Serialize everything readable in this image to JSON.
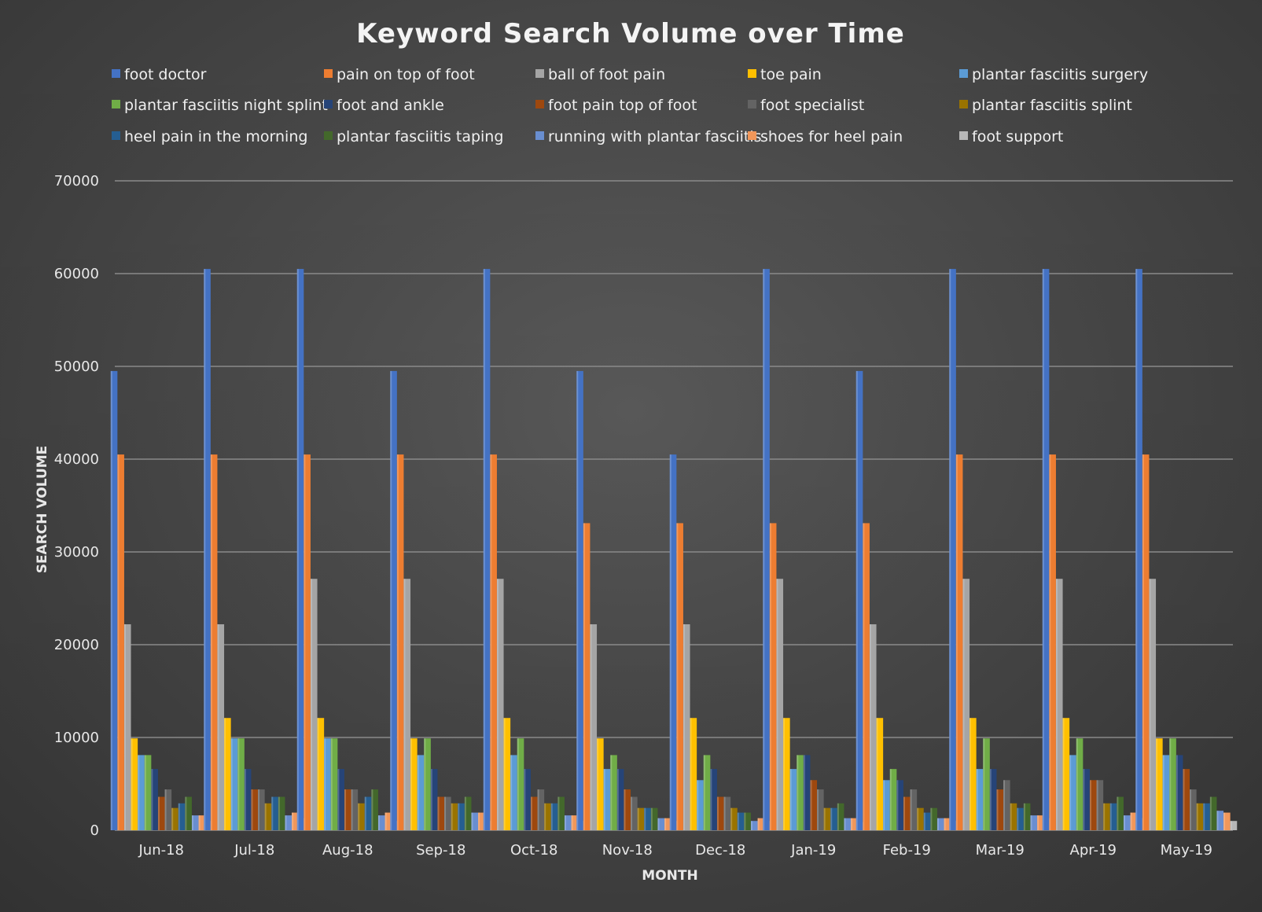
{
  "chart_data": {
    "type": "bar",
    "title": "Keyword Search Volume over Time",
    "xlabel": "MONTH",
    "ylabel": "SEARCH VOLUME",
    "ylim": [
      0,
      70000
    ],
    "yticks": [
      0,
      10000,
      20000,
      30000,
      40000,
      50000,
      60000,
      70000
    ],
    "grid": true,
    "legend": "top",
    "categories": [
      "Jun-18",
      "Jul-18",
      "Aug-18",
      "Sep-18",
      "Oct-18",
      "Nov-18",
      "Dec-18",
      "Jan-19",
      "Feb-19",
      "Mar-19",
      "Apr-19",
      "May-19"
    ],
    "series": [
      {
        "name": "foot doctor",
        "color": "#4472C4",
        "values": [
          49500,
          60500,
          60500,
          49500,
          60500,
          49500,
          40500,
          60500,
          49500,
          60500,
          60500,
          60500
        ]
      },
      {
        "name": "pain on top of foot",
        "color": "#ED7D31",
        "values": [
          40500,
          40500,
          40500,
          40500,
          40500,
          33100,
          33100,
          33100,
          33100,
          40500,
          40500,
          40500
        ]
      },
      {
        "name": "ball of foot pain",
        "color": "#A5A5A5",
        "values": [
          22200,
          22200,
          27100,
          27100,
          27100,
          22200,
          22200,
          27100,
          22200,
          27100,
          27100,
          27100
        ]
      },
      {
        "name": "toe pain",
        "color": "#FFC000",
        "values": [
          9900,
          12100,
          12100,
          9900,
          12100,
          9900,
          12100,
          12100,
          12100,
          12100,
          12100,
          9900
        ]
      },
      {
        "name": "plantar fasciitis surgery",
        "color": "#5B9BD5",
        "values": [
          8100,
          9900,
          9900,
          8100,
          8100,
          6600,
          5400,
          6600,
          5400,
          6600,
          8100,
          8100
        ]
      },
      {
        "name": "plantar fasciitis night splint",
        "color": "#70AD47",
        "values": [
          8100,
          9900,
          9900,
          9900,
          9900,
          8100,
          8100,
          8100,
          6600,
          9900,
          9900,
          9900
        ]
      },
      {
        "name": "foot and ankle",
        "color": "#264478",
        "values": [
          6600,
          6600,
          6600,
          6600,
          6600,
          6600,
          6600,
          8100,
          5400,
          6600,
          6600,
          8100
        ]
      },
      {
        "name": "foot pain top of foot",
        "color": "#9E480E",
        "values": [
          3600,
          4400,
          4400,
          3600,
          3600,
          4400,
          3600,
          5400,
          3600,
          4400,
          5400,
          6600
        ]
      },
      {
        "name": "foot specialist",
        "color": "#636363",
        "values": [
          4400,
          4400,
          4400,
          3600,
          4400,
          3600,
          3600,
          4400,
          4400,
          5400,
          5400,
          4400
        ]
      },
      {
        "name": "plantar fasciitis splint",
        "color": "#997300",
        "values": [
          2400,
          2900,
          2900,
          2900,
          2900,
          2400,
          2400,
          2400,
          2400,
          2900,
          2900,
          2900
        ]
      },
      {
        "name": "heel pain in the morning",
        "color": "#255E91",
        "values": [
          2900,
          3600,
          3600,
          2900,
          2900,
          2400,
          1900,
          2400,
          1900,
          2400,
          2900,
          2900
        ]
      },
      {
        "name": "plantar fasciitis taping",
        "color": "#43682B",
        "values": [
          3600,
          3600,
          4400,
          3600,
          3600,
          2400,
          1900,
          2900,
          2400,
          2900,
          3600,
          3600
        ]
      },
      {
        "name": "running with plantar fasciitis",
        "color": "#698ED0",
        "values": [
          1600,
          1600,
          1600,
          1900,
          1600,
          1300,
          1000,
          1300,
          1300,
          1600,
          1600,
          2100
        ]
      },
      {
        "name": "shoes for heel pain",
        "color": "#F1975A",
        "values": [
          1600,
          1900,
          1900,
          1900,
          1600,
          1300,
          1300,
          1300,
          1300,
          1600,
          1900,
          1900
        ]
      },
      {
        "name": "foot support",
        "color": "#B7B7B7",
        "values": [
          1000,
          1300,
          1000,
          1000,
          1000,
          1000,
          1000,
          880,
          1000,
          1300,
          1300,
          1000
        ]
      }
    ]
  }
}
